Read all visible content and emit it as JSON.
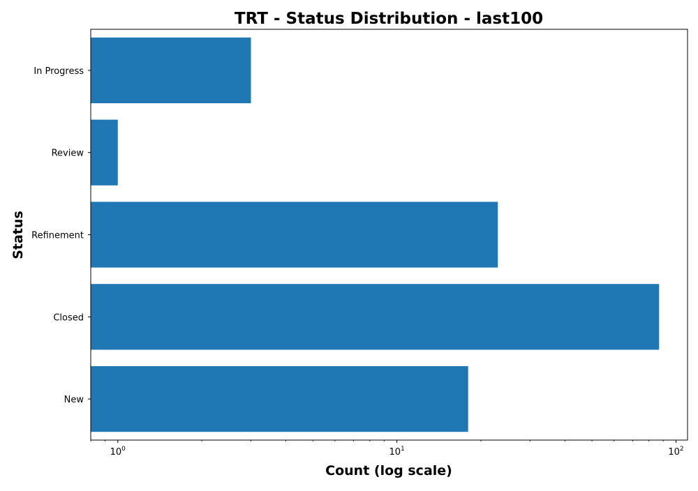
{
  "chart_data": {
    "type": "bar",
    "orientation": "horizontal",
    "title": "TRT - Status Distribution - last100",
    "xlabel": "Count (log scale)",
    "ylabel": "Status",
    "x_scale": "log",
    "xlim": [
      0.8,
      110
    ],
    "x_tick_labels": [
      {
        "base": "10",
        "exp": "0",
        "value": 1
      },
      {
        "base": "10",
        "exp": "1",
        "value": 10
      },
      {
        "base": "10",
        "exp": "2",
        "value": 100
      }
    ],
    "categories": [
      "New",
      "Closed",
      "Refinement",
      "Review",
      "In Progress"
    ],
    "values": [
      18,
      87,
      23,
      1,
      3
    ],
    "bar_color": "#1f77b4",
    "grid": false
  }
}
